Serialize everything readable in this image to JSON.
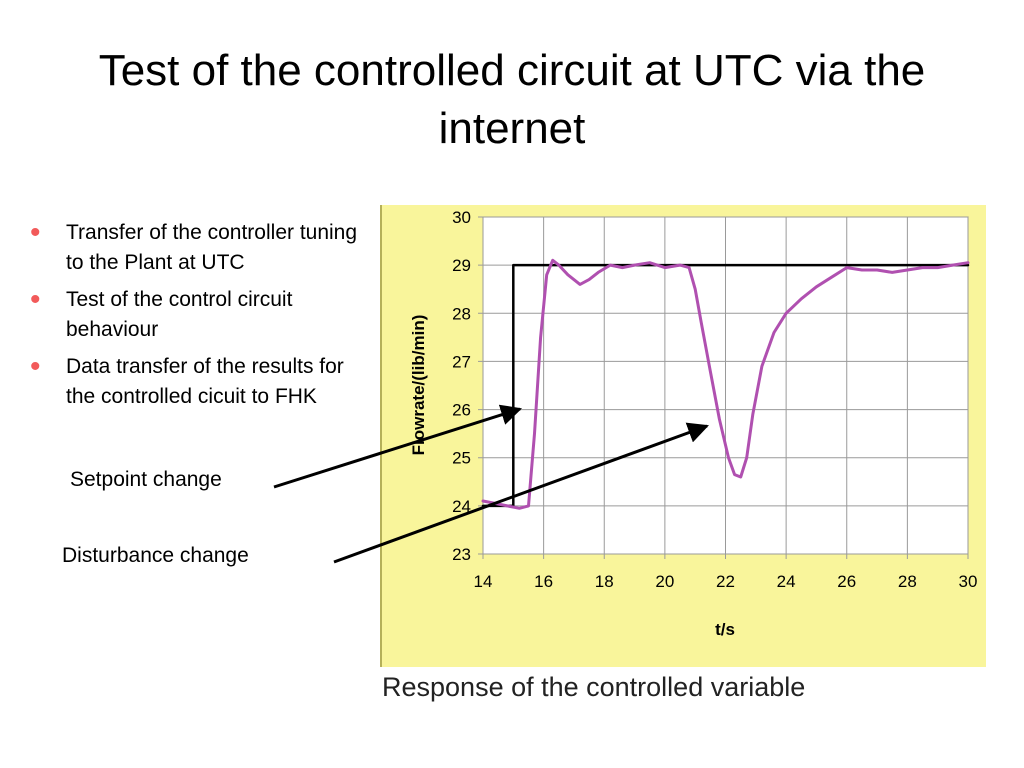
{
  "slide": {
    "title": "Test of the controlled circuit at UTC via the internet",
    "bullets": [
      "Transfer of the controller tuning to the Plant at UTC",
      "Test of the control circuit behaviour",
      "Data transfer of the results for the controlled cicuit to FHK"
    ],
    "annotations": {
      "setpoint": "Setpoint change",
      "disturbance": "Disturbance change"
    },
    "caption": "Response of the controlled variable"
  },
  "colors": {
    "panel_bg": "#f9f59b",
    "bullet": "#f25a5a",
    "response_line": "#b050b0",
    "setpoint_line": "#000000",
    "grid": "#9a9a9a"
  },
  "chart_data": {
    "type": "line",
    "xlabel": "t/s",
    "ylabel": "Flowrate/(lib/min)",
    "xlim": [
      14,
      30
    ],
    "ylim": [
      23,
      30
    ],
    "xticks": [
      "14",
      "16",
      "18",
      "20",
      "22",
      "24",
      "26",
      "28",
      "30"
    ],
    "yticks": [
      "23",
      "24",
      "25",
      "26",
      "27",
      "28",
      "29",
      "30"
    ],
    "grid": true,
    "series": [
      {
        "role": "setpoint",
        "x": [
          14.0,
          15.0,
          15.0,
          30.0
        ],
        "y": [
          24.0,
          24.0,
          29.0,
          29.0
        ]
      },
      {
        "role": "response",
        "x": [
          14.0,
          14.4,
          14.8,
          15.2,
          15.5,
          15.7,
          15.9,
          16.1,
          16.3,
          16.5,
          16.8,
          17.2,
          17.5,
          17.8,
          18.2,
          18.6,
          19.0,
          19.5,
          20.0,
          20.5,
          20.8,
          21.0,
          21.2,
          21.5,
          21.8,
          22.1,
          22.3,
          22.5,
          22.7,
          22.9,
          23.2,
          23.6,
          24.0,
          24.5,
          25.0,
          25.5,
          26.0,
          26.5,
          27.0,
          27.5,
          28.0,
          28.5,
          29.0,
          29.5,
          30.0
        ],
        "y": [
          24.1,
          24.05,
          24.0,
          23.95,
          24.0,
          25.5,
          27.5,
          28.8,
          29.1,
          29.0,
          28.8,
          28.6,
          28.7,
          28.85,
          29.0,
          28.95,
          29.0,
          29.05,
          28.95,
          29.0,
          28.95,
          28.5,
          27.8,
          26.8,
          25.8,
          25.0,
          24.65,
          24.6,
          25.0,
          25.9,
          26.9,
          27.6,
          28.0,
          28.3,
          28.55,
          28.75,
          28.95,
          28.9,
          28.9,
          28.85,
          28.9,
          28.95,
          28.95,
          29.0,
          29.05
        ]
      }
    ]
  }
}
